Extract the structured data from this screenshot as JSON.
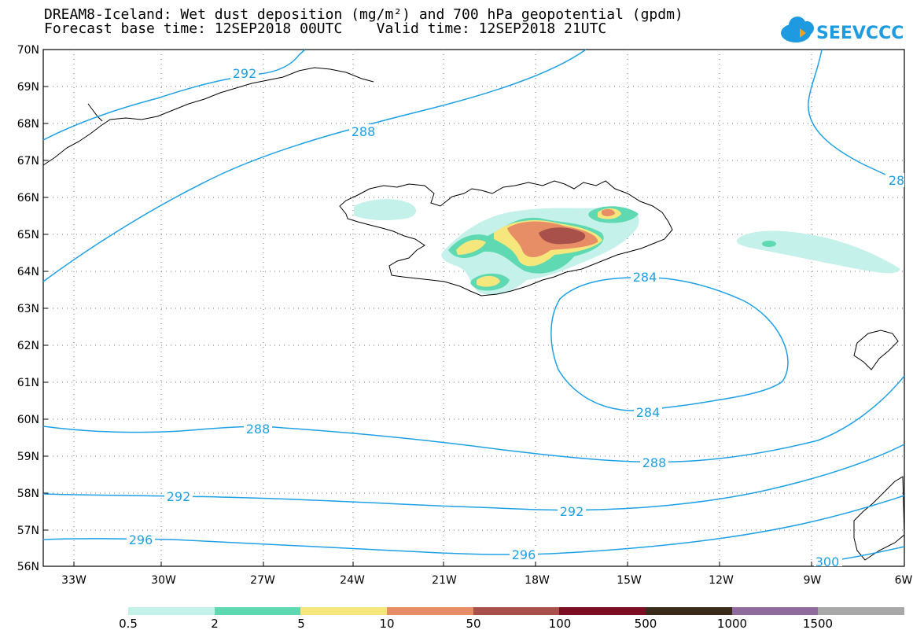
{
  "title": {
    "line1": "DREAM8-Iceland: Wet dust deposition (mg/m²) and 700 hPa geopotential (gpdm)",
    "line2": "Forecast base time: 12SEP2018 00UTC    Valid time: 12SEP2018 21UTC"
  },
  "logo": {
    "text": "SEEVCCC",
    "icon": "cloud-logo-icon",
    "color": "#1e9be0"
  },
  "axes": {
    "lat_labels": [
      "70N",
      "69N",
      "68N",
      "67N",
      "66N",
      "65N",
      "64N",
      "63N",
      "62N",
      "61N",
      "60N",
      "59N",
      "58N",
      "57N",
      "56N"
    ],
    "lon_labels": [
      "33W",
      "30W",
      "27W",
      "24W",
      "21W",
      "18W",
      "15W",
      "12W",
      "9W",
      "6W"
    ]
  },
  "contours": {
    "color": "#1ea0e6",
    "labels": [
      {
        "id": "c292a",
        "text": "292"
      },
      {
        "id": "c288a",
        "text": "288"
      },
      {
        "id": "c28e",
        "text": "28"
      },
      {
        "id": "c284a",
        "text": "284"
      },
      {
        "id": "c284b",
        "text": "284"
      },
      {
        "id": "c288b",
        "text": "288"
      },
      {
        "id": "c288c",
        "text": "288"
      },
      {
        "id": "c292b",
        "text": "292"
      },
      {
        "id": "c292c",
        "text": "292"
      },
      {
        "id": "c296a",
        "text": "296"
      },
      {
        "id": "c296b",
        "text": "296"
      },
      {
        "id": "c300",
        "text": "300"
      }
    ]
  },
  "legend": {
    "colors": [
      "#c4f1ea",
      "#5ed9b2",
      "#f6e77d",
      "#e88e67",
      "#a8504a",
      "#7a0f23",
      "#3a2a1a",
      "#8e6a9e",
      "#a8a8a8"
    ],
    "ticks": [
      "0.5",
      "2",
      "5",
      "10",
      "50",
      "100",
      "500",
      "1000",
      "1500"
    ]
  }
}
